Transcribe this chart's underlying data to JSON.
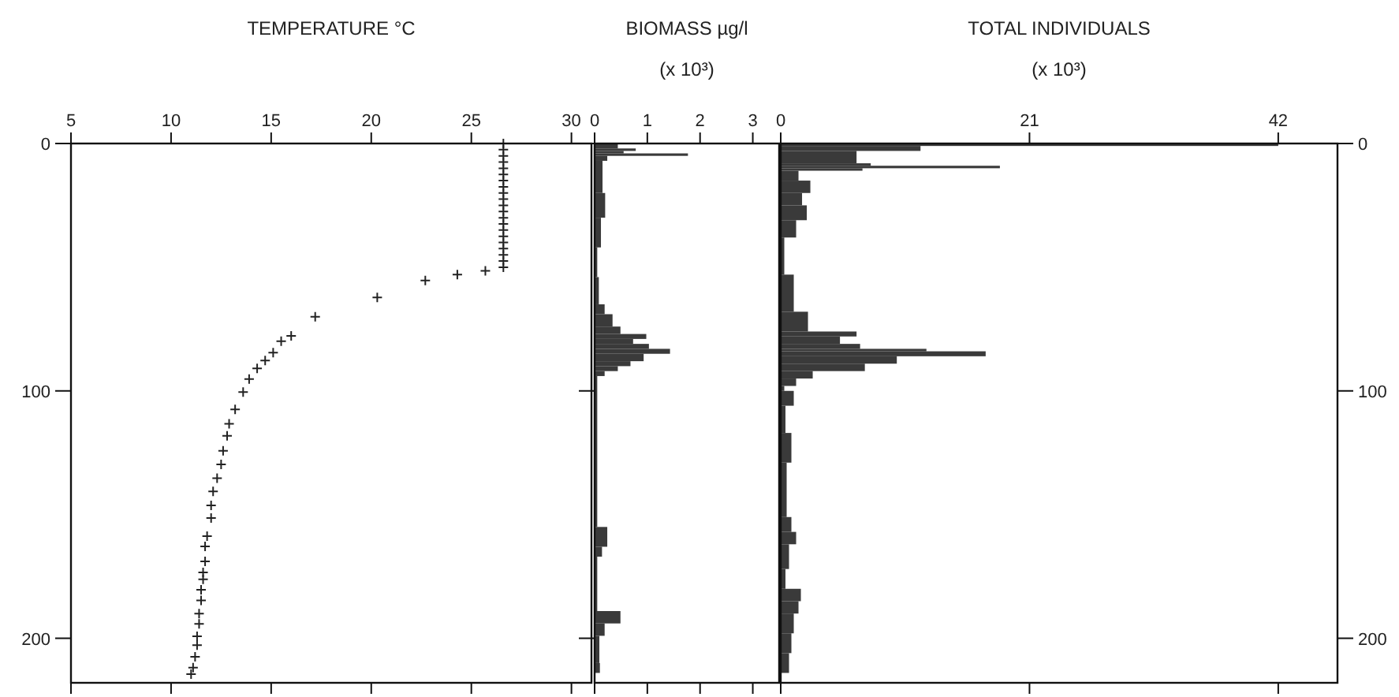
{
  "chart_data": [
    {
      "type": "scatter",
      "title": "TEMPERATURE °C",
      "marker": "cross",
      "color": "#222222",
      "x": [
        26.6,
        26.6,
        26.6,
        26.6,
        26.6,
        26.6,
        26.6,
        26.6,
        26.6,
        26.6,
        26.6,
        26.6,
        26.6,
        26.6,
        26.6,
        26.6,
        26.6,
        26.6,
        26.6,
        26.6,
        26.6,
        25.7,
        24.3,
        22.7,
        20.3,
        17.2,
        16.0,
        15.5,
        15.1,
        14.7,
        14.3,
        13.9,
        13.6,
        13.2,
        12.9,
        12.8,
        12.6,
        12.5,
        12.3,
        12.1,
        12.0,
        12.0,
        11.8,
        11.7,
        11.7,
        11.6,
        11.6,
        11.5,
        11.5,
        11.4,
        11.4,
        11.3,
        11.3,
        11.2,
        11.1,
        11.0
      ],
      "values": [
        0,
        2.5,
        5,
        7.5,
        10,
        12.5,
        15,
        17.5,
        20,
        22.5,
        25,
        27.5,
        30,
        32.5,
        35,
        37.5,
        40,
        42.5,
        45,
        47.5,
        50,
        51.5,
        53,
        55.4,
        62.2,
        70,
        77.8,
        79.9,
        84.5,
        87.7,
        90.9,
        95.2,
        100.5,
        107.5,
        113.3,
        118.2,
        124.2,
        129.7,
        135.3,
        140.6,
        146.3,
        151.4,
        158.7,
        162.9,
        168.9,
        173.4,
        176.2,
        180.4,
        184.7,
        190,
        194.2,
        199.2,
        202.8,
        207.5,
        211.9,
        214.5
      ],
      "xlim": [
        5,
        31
      ],
      "xticks": [
        5,
        10,
        15,
        20,
        25,
        30
      ],
      "ylim": [
        218,
        0
      ],
      "yticks": [
        0,
        100,
        200
      ]
    },
    {
      "type": "histogram",
      "orientation": "horizontal",
      "title": "BIOMASS µg/l",
      "subtitle": "(x 10³)",
      "color": "#3a3a3a",
      "bins": [
        0,
        2,
        3,
        4,
        5,
        7,
        20,
        30,
        42,
        54,
        65,
        69,
        74,
        77,
        79,
        81,
        83,
        85,
        88,
        90,
        92,
        94,
        155,
        163,
        167,
        189,
        194,
        199,
        210,
        214
      ],
      "values": [
        0.44,
        0.78,
        0.55,
        1.77,
        0.24,
        0.15,
        0.2,
        0.12,
        0.05,
        0.08,
        0.19,
        0.34,
        0.49,
        0.98,
        0.73,
        1.03,
        1.43,
        0.93,
        0.68,
        0.44,
        0.19,
        0.05,
        0.24,
        0.14,
        0.05,
        0.49,
        0.19,
        0.09,
        0.1
      ],
      "xlim": [
        0,
        3.5
      ],
      "xticks": [
        0,
        1,
        2,
        3
      ],
      "ylim": [
        218,
        0
      ],
      "yticks": [
        0,
        100,
        200
      ],
      "tick_labels": "x"
    },
    {
      "type": "histogram",
      "orientation": "horizontal",
      "title": "TOTAL INDIVIDUALS",
      "subtitle": "(x 10³)",
      "color": "#3a3a3a",
      "bins": [
        0,
        1,
        3,
        8,
        9,
        10,
        11,
        15,
        20,
        25,
        31,
        38,
        53,
        68,
        76,
        78,
        81,
        83,
        84,
        86,
        89,
        92,
        95,
        98,
        100,
        106,
        117,
        129,
        151,
        157,
        162,
        172,
        180,
        185,
        190,
        198,
        206,
        214
      ],
      "values": [
        42,
        11.8,
        6.4,
        7.6,
        18.5,
        6.9,
        1.5,
        2.5,
        1.8,
        2.2,
        1.3,
        0.3,
        1.1,
        2.3,
        6.4,
        5.0,
        6.7,
        12.3,
        17.3,
        9.8,
        7.1,
        2.7,
        1.3,
        0.3,
        1.1,
        0.4,
        0.9,
        0.5,
        0.9,
        1.3,
        0.7,
        0.4,
        1.7,
        1.5,
        1.1,
        0.9,
        0.7
      ],
      "xlim": [
        0,
        47
      ],
      "xticks": [
        0,
        21,
        42
      ],
      "ylim": [
        218,
        0
      ],
      "yticks": [
        0,
        100,
        200
      ]
    }
  ]
}
